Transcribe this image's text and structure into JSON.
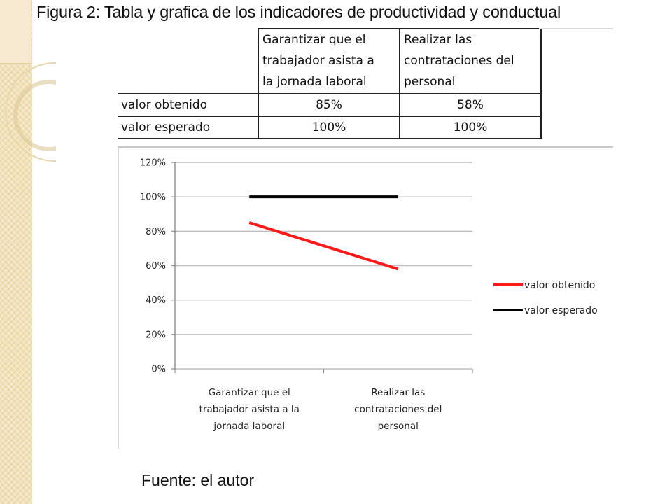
{
  "title": "Figura 2: Tabla y grafica de los indicadores de productividad y conductual",
  "table": {
    "header": [
      "",
      "Garantizar que el trabajador asista a la jornada laboral",
      "Realizar las contrataciones del personal"
    ],
    "header_lines": [
      [],
      [
        "Garantizar que el",
        "trabajador asista a",
        "la jornada laboral"
      ],
      [
        "Realizar las",
        "contrataciones del",
        "personal"
      ]
    ],
    "rows": [
      [
        "valor obtenido",
        "85%",
        "58%"
      ],
      [
        "valor esperado",
        "100%",
        "100%"
      ]
    ]
  },
  "chart_data": {
    "type": "line",
    "categories": [
      "Garantizar que el trabajador asista a la jornada laboral",
      "Realizar las contrataciones del personal"
    ],
    "category_lines": [
      [
        "Garantizar  que el",
        "trabajador asista  a la",
        "jornada laboral"
      ],
      [
        "Realizar las",
        "contrataciones del",
        "personal"
      ]
    ],
    "series": [
      {
        "name": "valor obtenido",
        "values": [
          0.85,
          0.58
        ],
        "color": "#ff1a1a"
      },
      {
        "name": "valor esperado",
        "values": [
          1.0,
          1.0
        ],
        "color": "#000000"
      }
    ],
    "yticks": [
      "0%",
      "20%",
      "40%",
      "60%",
      "80%",
      "100%",
      "120%"
    ],
    "ylim": [
      0,
      1.2
    ],
    "grid": true,
    "legend": "right"
  },
  "source": "Fuente: el autor",
  "colors": {
    "strip": "#f3e2b8",
    "grid": "#bfbfbf"
  }
}
